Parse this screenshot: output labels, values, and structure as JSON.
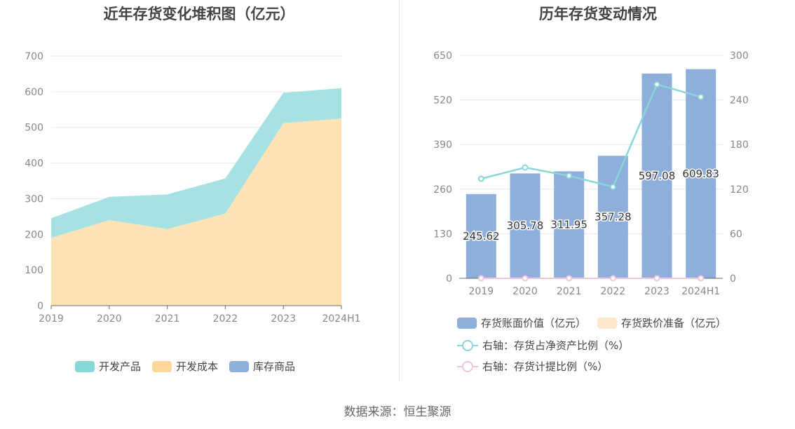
{
  "footer": "数据来源：恒生聚源",
  "chart_data": [
    {
      "type": "area",
      "title": "近年存货变化堆积图（亿元）",
      "categories": [
        "2019",
        "2020",
        "2021",
        "2022",
        "2023",
        "2024H1"
      ],
      "ylim": [
        0,
        700
      ],
      "yticks": [
        0,
        100,
        200,
        300,
        400,
        500,
        600,
        700
      ],
      "stacked": true,
      "grid": true,
      "legend_position": "bottom",
      "series": [
        {
          "name": "开发成本",
          "values": [
            190,
            240,
            215,
            258,
            512,
            525
          ],
          "color": "#fde3b5"
        },
        {
          "name": "开发产品",
          "values": [
            55,
            65,
            97,
            99,
            85,
            85
          ],
          "color": "#a6e1e3"
        },
        {
          "name": "库存商品",
          "values": [
            0,
            0,
            0,
            0,
            0,
            0
          ],
          "color": "#8eaedc"
        }
      ],
      "legend": [
        {
          "name": "开发产品",
          "color": "#88d8d9"
        },
        {
          "name": "开发成本",
          "color": "#fdd89a"
        },
        {
          "name": "库存商品",
          "color": "#8eaedc"
        }
      ]
    },
    {
      "type": "bar",
      "title": "历年存货变动情况",
      "categories": [
        "2019",
        "2020",
        "2021",
        "2022",
        "2023",
        "2024H1"
      ],
      "ylim": [
        0,
        650
      ],
      "yticks": [
        0,
        130,
        260,
        390,
        520,
        650
      ],
      "y2lim": [
        0,
        300
      ],
      "y2ticks": [
        0,
        60,
        120,
        180,
        240,
        300
      ],
      "grid": true,
      "legend_position": "bottom",
      "series": [
        {
          "name": "存货账面价值（亿元）",
          "axis": "left",
          "type": "bar",
          "color": "#8eaedc",
          "values": [
            245.62,
            305.78,
            311.95,
            357.28,
            597.08,
            609.83
          ],
          "labels": [
            "245.62",
            "305.78",
            "311.95",
            "357.28",
            "597.08",
            "609.83"
          ]
        },
        {
          "name": "存货跌价准备（亿元）",
          "axis": "left",
          "type": "bar",
          "color": "#fde8c9",
          "values": [
            0,
            0,
            0,
            0,
            0,
            0
          ]
        },
        {
          "name": "右轴：存货占净资产比例（%）",
          "axis": "right",
          "type": "line",
          "color": "#8ad6d9",
          "values": [
            134,
            149,
            138,
            123,
            261,
            244
          ]
        },
        {
          "name": "右轴：存货计提比例（%）",
          "axis": "right",
          "type": "line",
          "color": "#f0c5dc",
          "values": [
            0,
            0,
            0,
            0,
            0,
            0
          ]
        }
      ]
    }
  ]
}
